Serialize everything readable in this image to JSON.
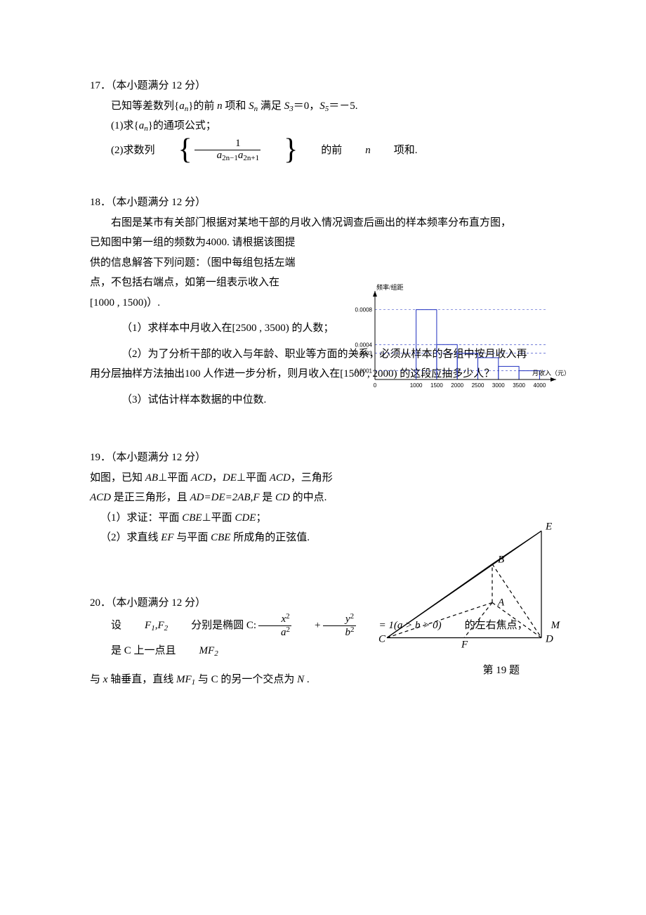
{
  "q17": {
    "header": "17．（本小题满分 12 分）",
    "line1_pre": "已知等差数列{",
    "line1_an": "a",
    "line1_sub": "n",
    "line1_mid": "}的前 ",
    "line1_n": "n",
    "line1_mid2": " 项和 ",
    "line1_Sn": "S",
    "line1_sat": " 满足 ",
    "line1_S3": "S",
    "line1_eq1": "＝0，",
    "line1_S5": "S",
    "line1_eq2": "＝－5.",
    "part1_pre": "(1)求{",
    "part1_post": "}的通项公式；",
    "part2_pre": "(2)求数列",
    "part2_num": "1",
    "part2_den_a1": "a",
    "part2_den_s1": "2n−1",
    "part2_den_a2": "a",
    "part2_den_s2": "2n+1",
    "part2_post": "的前 ",
    "part2_n": "n",
    "part2_end": " 项和."
  },
  "q18": {
    "header": "18．（本小题满分 12 分）",
    "intro": "右图是某市有关部门根据对某地干部的月收入情况调查后画出的样本频率分布直方图，",
    "l2": "已知图中第一组的频数为4000. 请根据该图提",
    "l3": "供的信息解答下列问题：（图中每组包括左端",
    "l4": "点，不包括右端点，如第一组表示收入在",
    "l5": "[1000 , 1500)）.",
    "p1": "（1）求样本中月收入在[2500 , 3500) 的人数；",
    "p2": "（2）为了分析干部的收入与年龄、职业等方面的关系，必须从样本的各组中按月收入再",
    "p2b": "用分层抽样方法抽出100 人作进一步分析，则月收入在[1500 , 2000) 的这段应抽多少人？",
    "p3": "（3）试估计样本数据的中位数."
  },
  "q19": {
    "header": "19．（本小题满分 12 分）",
    "l1": "如图，已知 AB⊥平面 ACD，DE⊥平面 ACD，三角形",
    "l2": "ACD 是正三角形，且 AD=DE=2AB,F 是 CD 的中点.",
    "p1": "（1）求证：平面 CBE⊥平面 CDE；",
    "p2": "（2）求直线 EF 与平面 CBE 所成角的正弦值.",
    "caption": "第 19 题"
  },
  "q20": {
    "header": "20．（本小题满分 12 分）",
    "l1_pre": "设 ",
    "l1_F1": "F",
    "l1_F2": "F",
    "l1_mid": " 分别是椭圆 C:",
    "l1_eq_num1": "x",
    "l1_eq_den1": "a",
    "l1_plus": " + ",
    "l1_eq_num2": "y",
    "l1_eq_den2": "b",
    "l1_eq_rhs": " = 1(a > b > 0)",
    "l1_post": " 的左右焦点，",
    "l1_M": "M",
    "l1_post2": " 是 C 上一点且 ",
    "l1_MF2": "MF",
    "l2_pre": "与 ",
    "l2_x": "x",
    "l2_mid": " 轴垂直，直线 ",
    "l2_MF1": "MF",
    "l2_mid2": " 与 C 的另一个交点为 ",
    "l2_N": "N",
    "l2_end": " ."
  },
  "histogram": {
    "type": "histogram",
    "ylabel": "频率/组距",
    "xlabel": "月收入（元）",
    "x_ticks": [
      "0",
      "1000",
      "1500",
      "2000",
      "2500",
      "3000",
      "3500",
      "4000"
    ],
    "y_ticks": [
      {
        "v": 0.0001,
        "label": "0.0001"
      },
      {
        "v": 0.0003,
        "label": "0.0003"
      },
      {
        "v": 0.0004,
        "label": "0.0004"
      },
      {
        "v": 0.0008,
        "label": "0.0008"
      }
    ],
    "bars": [
      {
        "x0": 1000,
        "x1": 1500,
        "h": 0.0008
      },
      {
        "x0": 1500,
        "x1": 2000,
        "h": 0.0004
      },
      {
        "x0": 2000,
        "x1": 2500,
        "h": 0.0003
      },
      {
        "x0": 2500,
        "x1": 3000,
        "h": 0.00025
      },
      {
        "x0": 3000,
        "x1": 3500,
        "h": 0.00015
      },
      {
        "x0": 3500,
        "x1": 4000,
        "h": 0.0001
      }
    ],
    "xlim": [
      0,
      4300
    ],
    "ylim": [
      0,
      0.00095
    ],
    "bar_stroke": "#2030c0",
    "grid_color": "#2030c0",
    "axis_color": "#000000",
    "label_fontsize": 9,
    "tick_fontsize": 8
  },
  "geom": {
    "type": "diagram",
    "points": {
      "C": {
        "x": 15,
        "y": 160,
        "label_dx": -12,
        "label_dy": 6
      },
      "D": {
        "x": 235,
        "y": 160,
        "label_dx": 6,
        "label_dy": 6
      },
      "A": {
        "x": 165,
        "y": 110,
        "label_dx": 8,
        "label_dy": 4
      },
      "B": {
        "x": 165,
        "y": 55,
        "label_dx": 8,
        "label_dy": -2
      },
      "E": {
        "x": 235,
        "y": 8,
        "label_dx": 6,
        "label_dy": -2
      },
      "F": {
        "x": 125,
        "y": 160,
        "label_dx": -4,
        "label_dy": 14
      }
    },
    "solid_edges": [
      [
        "C",
        "B"
      ],
      [
        "B",
        "E"
      ],
      [
        "C",
        "E"
      ],
      [
        "C",
        "D"
      ],
      [
        "D",
        "E"
      ]
    ],
    "dashed_edges": [
      [
        "C",
        "A"
      ],
      [
        "A",
        "D"
      ],
      [
        "A",
        "B"
      ],
      [
        "A",
        "F"
      ],
      [
        "B",
        "D"
      ]
    ],
    "stroke": "#000000",
    "fontsize": 15
  }
}
